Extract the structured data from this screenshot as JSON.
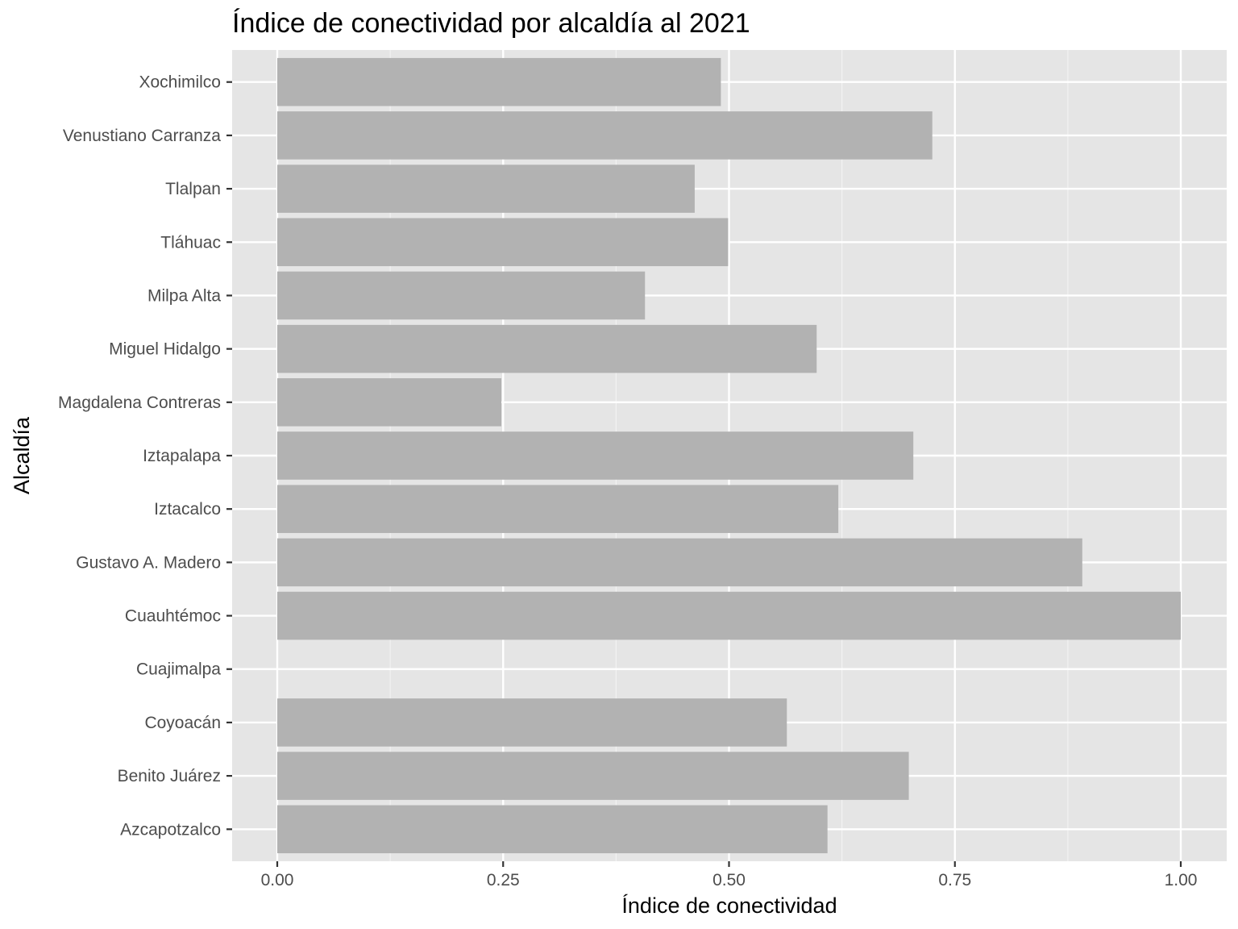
{
  "chart_data": {
    "type": "bar",
    "orientation": "horizontal",
    "title": "Índice de conectividad por alcaldía al 2021",
    "xlabel": "Índice de conectividad",
    "ylabel": "Alcaldía",
    "xlim": [
      -0.125,
      1.25
    ],
    "xticks": [
      "0.00",
      "0.25",
      "0.50",
      "0.75",
      "1.00"
    ],
    "grid": true,
    "categories": [
      "Xochimilco",
      "Venustiano Carranza",
      "Tlalpan",
      "Tláhuac",
      "Milpa Alta",
      "Miguel Hidalgo",
      "Magdalena Contreras",
      "Iztapalapa",
      "Iztacalco",
      "Gustavo A. Madero",
      "Cuauhtémoc",
      "Cuajimalpa",
      "Coyoacán",
      "Benito Juárez",
      "Azcapotzalco"
    ],
    "values": [
      0.491,
      0.725,
      0.462,
      0.499,
      0.407,
      0.597,
      0.248,
      0.704,
      0.621,
      0.891,
      1.0,
      0.0,
      0.564,
      0.699,
      0.609
    ],
    "colors": {
      "bar": "#b2b2b2",
      "panel": "#e5e5e5",
      "grid_major": "#ffffff",
      "grid_minor": "#f2f2f2",
      "tick": "#333333",
      "tick_label": "#4d4d4d"
    }
  }
}
